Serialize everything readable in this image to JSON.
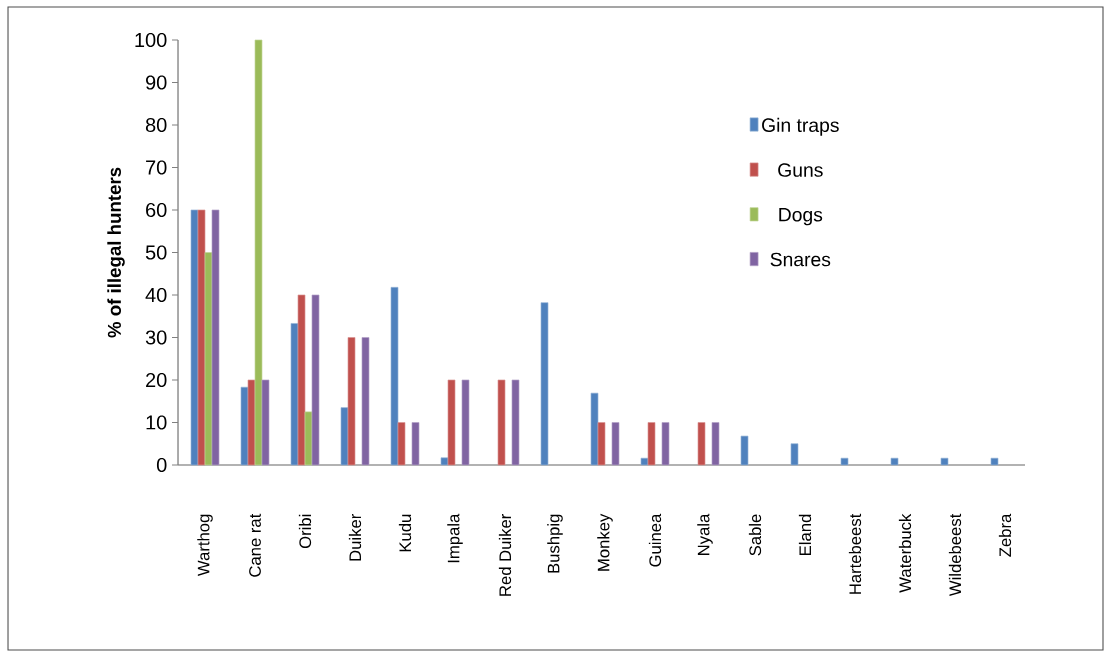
{
  "chart_data": {
    "type": "bar",
    "ylabel": "% of illegal hunters",
    "categories": [
      "Warthog",
      "Cane rat",
      "Oribi",
      "Duiker",
      "Kudu",
      "Impala",
      "Red Duiker",
      "Bushpig",
      "Monkey",
      "Guinea",
      "Nyala",
      "Sable",
      "Eland",
      "Hartebeest",
      "Waterbuck",
      "Wildebeest",
      "Zebra"
    ],
    "series": [
      {
        "name": "Gin traps",
        "color": "#4f81bd",
        "values": [
          60,
          18.3,
          33.3,
          13.5,
          41.8,
          1.7,
          null,
          38.2,
          16.9,
          1.6,
          null,
          6.8,
          5,
          1.6,
          1.6,
          1.6,
          1.6
        ]
      },
      {
        "name": "Guns",
        "color": "#c0504d",
        "values": [
          60,
          20,
          40,
          30,
          10,
          20,
          20,
          null,
          10,
          10,
          10,
          null,
          null,
          null,
          null,
          null,
          null
        ]
      },
      {
        "name": "Dogs",
        "color": "#9bbb59",
        "values": [
          50,
          100,
          12.5,
          null,
          null,
          null,
          null,
          null,
          null,
          null,
          null,
          null,
          null,
          null,
          null,
          null,
          null
        ]
      },
      {
        "name": "Snares",
        "color": "#8064a2",
        "values": [
          60,
          20,
          40,
          30,
          10,
          20,
          20,
          null,
          10,
          10,
          10,
          null,
          null,
          null,
          null,
          null,
          null
        ]
      }
    ],
    "ylim": [
      0,
      100
    ],
    "yticks": [
      0,
      10,
      20,
      30,
      40,
      50,
      60,
      70,
      80,
      90,
      100
    ],
    "legend": "right",
    "grid": false
  }
}
